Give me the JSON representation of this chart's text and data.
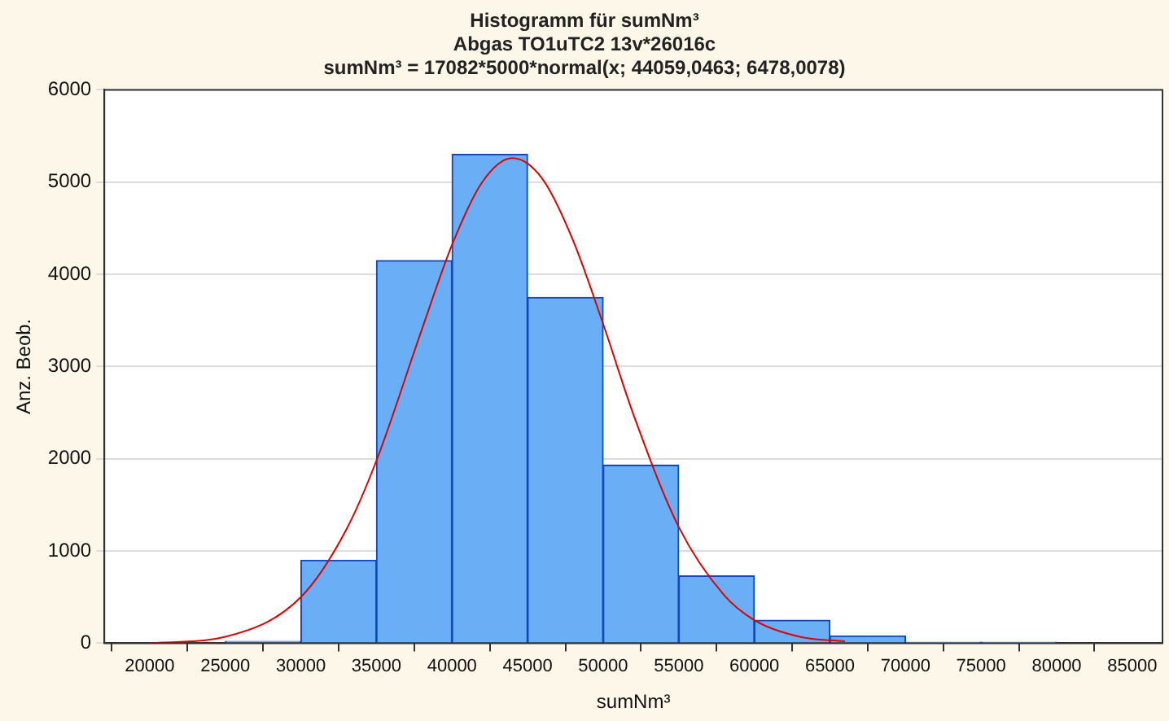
{
  "chart_data": {
    "type": "histogram",
    "title": "Histogramm für sumNm³",
    "subtitle": "Abgas TO1uTC2 13v*26016c",
    "annotations": [
      "sumNm³ = 17082*5000*normal(x; 44059,0463; 6478,0078)"
    ],
    "xlabel": "sumNm³",
    "ylabel": "Anz. Beob.",
    "bins": [
      25000,
      30000,
      35000,
      40000,
      45000,
      50000,
      55000,
      60000,
      65000,
      70000,
      75000,
      80000
    ],
    "values": [
      20,
      900,
      4150,
      5300,
      3750,
      1930,
      730,
      250,
      80,
      10,
      10
    ],
    "color": "#6aaef5",
    "series": [
      {
        "type": "line",
        "color": "#e00000",
        "x": [
          20000,
          25000,
          30000,
          33000,
          35000,
          38000,
          40000,
          42000,
          44000,
          46000,
          48000,
          50000,
          52000,
          55000,
          58000,
          60000,
          63000,
          66000
        ],
        "values": [
          0,
          70,
          500,
          1230,
          1980,
          3400,
          4320,
          5000,
          5260,
          5030,
          4370,
          3460,
          2480,
          1260,
          520,
          250,
          70,
          20
        ]
      }
    ],
    "xlim": [
      17000,
      87000
    ],
    "xticks": [
      20000,
      25000,
      30000,
      35000,
      40000,
      45000,
      50000,
      55000,
      60000,
      65000,
      70000,
      75000,
      80000,
      85000
    ],
    "ylim": [
      0,
      6000
    ],
    "yticks": [
      0,
      1000,
      2000,
      3000,
      4000,
      5000,
      6000
    ],
    "grid": "y",
    "legend": false
  }
}
